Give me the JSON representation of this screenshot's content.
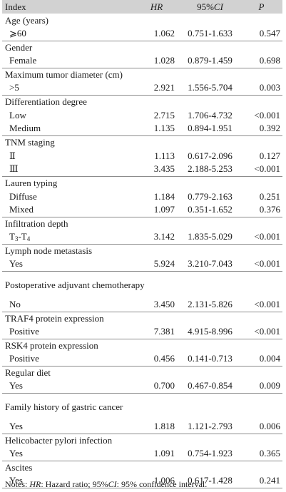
{
  "header": {
    "col1": "Index",
    "col2": "HR",
    "col3_prefix": "95%",
    "col3_italic": "CI",
    "col4": "P"
  },
  "groups": [
    {
      "title": "Age (years)",
      "rows": [
        {
          "label": "⩾60",
          "hr": "1.062",
          "ci": "0.751-1.633",
          "p": "0.547"
        }
      ]
    },
    {
      "title": "Gender",
      "rows": [
        {
          "label": "Female",
          "hr": "1.028",
          "ci": "0.879-1.459",
          "p": "0.698"
        }
      ]
    },
    {
      "title": "Maximum tumor diameter (cm)",
      "rows": [
        {
          "label": ">5",
          "hr": "2.921",
          "ci": "1.556-5.704",
          "p": "0.003"
        }
      ]
    },
    {
      "title": "Differentiation degree",
      "rows": [
        {
          "label": "Low",
          "hr": "2.715",
          "ci": "1.706-4.732",
          "p": "<0.001"
        },
        {
          "label": "Medium",
          "hr": "1.135",
          "ci": "0.894-1.951",
          "p": "0.392"
        }
      ]
    },
    {
      "title": "TNM staging",
      "rows": [
        {
          "label": "Ⅱ",
          "hr": "1.113",
          "ci": "0.617-2.096",
          "p": "0.127"
        },
        {
          "label": "Ⅲ",
          "hr": "3.435",
          "ci": "2.188-5.253",
          "p": "<0.001"
        }
      ]
    },
    {
      "title": "Lauren typing",
      "rows": [
        {
          "label": "Diffuse",
          "hr": "1.184",
          "ci": "0.779-2.163",
          "p": "0.251"
        },
        {
          "label": "Mixed",
          "hr": "1.097",
          "ci": "0.351-1.652",
          "p": "0.376"
        }
      ]
    },
    {
      "title": "Infiltration depth",
      "rows": [
        {
          "label_a": "T",
          "label_a_sub": "3",
          "label_b": "-T",
          "label_b_sub": "4",
          "hr": "3.142",
          "ci": "1.835-5.029",
          "p": "<0.001"
        }
      ]
    },
    {
      "title": "Lymph node metastasis",
      "rows": [
        {
          "label": "Yes",
          "hr": "5.924",
          "ci": "3.210-7.043",
          "p": "<0.001"
        }
      ]
    },
    {
      "title": "Postoperative adjuvant chemotherapy",
      "rows": [
        {
          "label": "No",
          "hr": "3.450",
          "ci": "2.131-5.826",
          "p": "<0.001"
        }
      ]
    },
    {
      "title": "TRAF4 protein expression",
      "rows": [
        {
          "label": "Positive",
          "hr": "7.381",
          "ci": "4.915-8.996",
          "p": "<0.001"
        }
      ]
    },
    {
      "title": "RSK4 protein expression",
      "rows": [
        {
          "label": "Positive",
          "hr": "0.456",
          "ci": "0.141-0.713",
          "p": "0.004"
        }
      ]
    },
    {
      "title": "Regular diet",
      "rows": [
        {
          "label": "Yes",
          "hr": "0.700",
          "ci": "0.467-0.854",
          "p": "0.009"
        }
      ]
    },
    {
      "title": "Family history of gastric cancer",
      "rows": [
        {
          "label": "Yes",
          "hr": "1.818",
          "ci": "1.121-2.793",
          "p": "0.006"
        }
      ]
    },
    {
      "title": "Helicobacter pylori infection",
      "rows": [
        {
          "label": "Yes",
          "hr": "1.091",
          "ci": "0.754-1.923",
          "p": "0.365"
        }
      ]
    },
    {
      "title": "Ascites",
      "rows": [
        {
          "label": "Yes",
          "hr": "1.006",
          "ci": "0.617-1.428",
          "p": "0.241"
        }
      ]
    }
  ],
  "note": {
    "prefix": "Notes: ",
    "hr_abbr": "HR",
    "hr_def": ": Hazard ratio; 95%",
    "ci_abbr": "CI",
    "ci_def": ": 95% confidence interval."
  }
}
